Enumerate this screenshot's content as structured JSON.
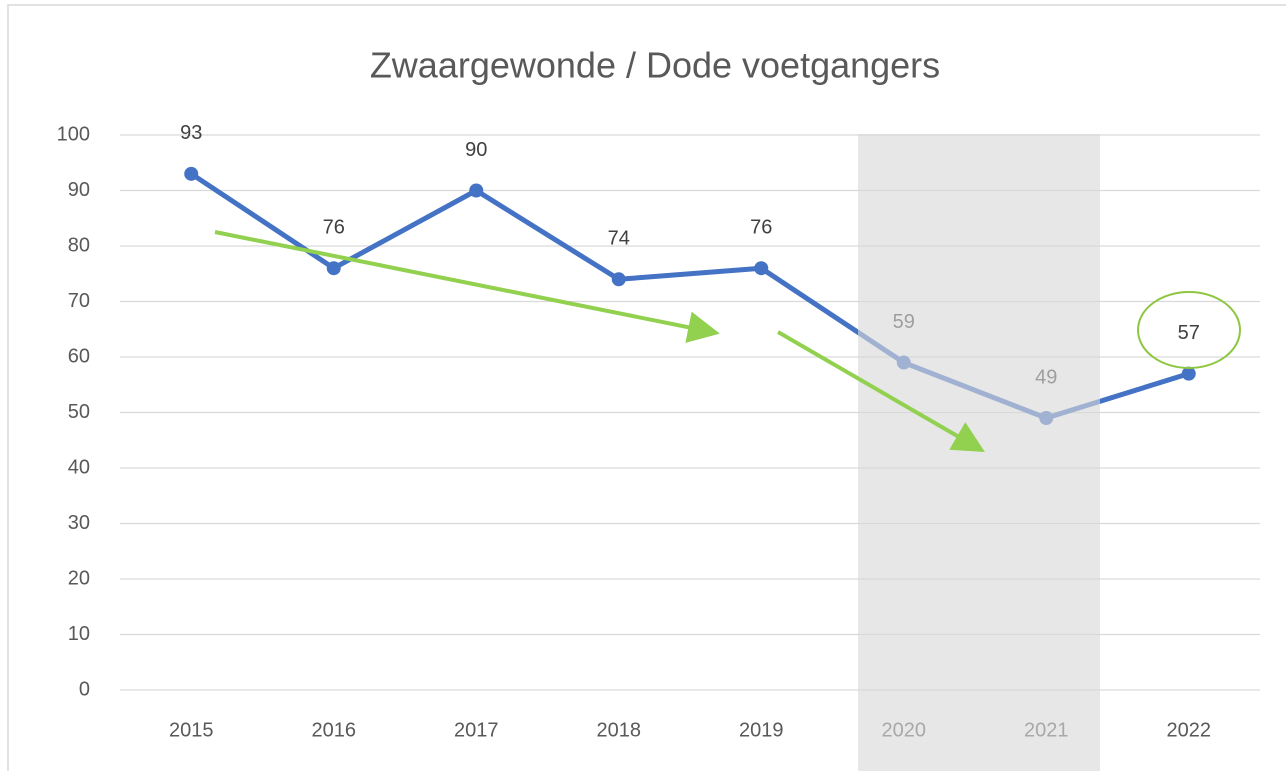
{
  "chart_data": {
    "type": "line",
    "title": "Zwaargewonde / Dode voetgangers",
    "categories": [
      "2015",
      "2016",
      "2017",
      "2018",
      "2019",
      "2020",
      "2021",
      "2022"
    ],
    "values": [
      93,
      76,
      90,
      74,
      76,
      59,
      49,
      57
    ],
    "color": "#4472c4",
    "ylim": [
      0,
      100
    ],
    "yticks": [
      0,
      10,
      20,
      30,
      40,
      50,
      60,
      70,
      80,
      90,
      100
    ],
    "grid": true
  }
}
